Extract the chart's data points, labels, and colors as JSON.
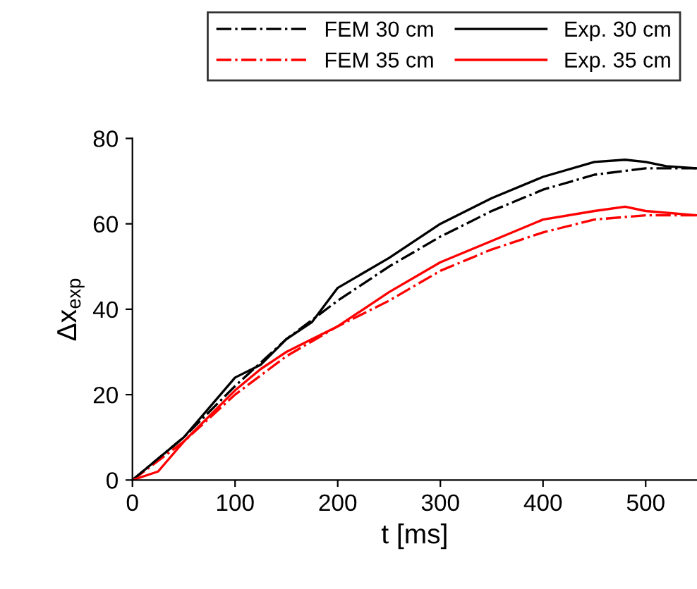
{
  "chart_data": {
    "type": "line",
    "xlabel": "t [ms]",
    "ylabel": "Δx$_{exp}$",
    "xlim": [
      0,
      550
    ],
    "ylim": [
      0,
      80
    ],
    "xticks": [
      0,
      100,
      200,
      300,
      400,
      500
    ],
    "yticks": [
      0,
      20,
      40,
      60,
      80
    ],
    "grid": false,
    "legend": "top",
    "series": [
      {
        "name": "FEM 30 cm",
        "color": "#000000",
        "line_style": "dashdot",
        "x": [
          0,
          50,
          100,
          150,
          200,
          250,
          300,
          350,
          400,
          450,
          500,
          550
        ],
        "values": [
          0,
          10,
          22,
          33,
          42,
          50,
          57,
          63,
          68,
          71.5,
          73,
          73
        ]
      },
      {
        "name": "FEM 35 cm",
        "color": "#ff0000",
        "line_style": "dashdot",
        "x": [
          0,
          50,
          100,
          150,
          200,
          250,
          300,
          350,
          400,
          450,
          500,
          550
        ],
        "values": [
          0,
          9,
          20,
          29,
          36,
          42,
          49,
          54,
          58,
          61,
          62,
          62
        ]
      },
      {
        "name": "Exp. 30 cm",
        "color": "#000000",
        "line_style": "solid",
        "x": [
          0,
          25,
          50,
          75,
          100,
          125,
          150,
          175,
          200,
          250,
          300,
          350,
          400,
          450,
          480,
          500,
          520,
          550
        ],
        "values": [
          0,
          5,
          10,
          17,
          24,
          27,
          33,
          37,
          45,
          52,
          60,
          66,
          71,
          74.5,
          75,
          74.5,
          73.5,
          73
        ]
      },
      {
        "name": "Exp. 35 cm",
        "color": "#ff0000",
        "line_style": "solid",
        "x": [
          0,
          25,
          50,
          75,
          100,
          125,
          150,
          175,
          200,
          250,
          300,
          350,
          400,
          450,
          480,
          500,
          550
        ],
        "values": [
          0,
          2,
          9,
          15,
          21,
          26,
          30,
          33,
          36,
          44,
          51,
          56,
          61,
          63,
          64,
          63,
          62
        ]
      }
    ]
  }
}
